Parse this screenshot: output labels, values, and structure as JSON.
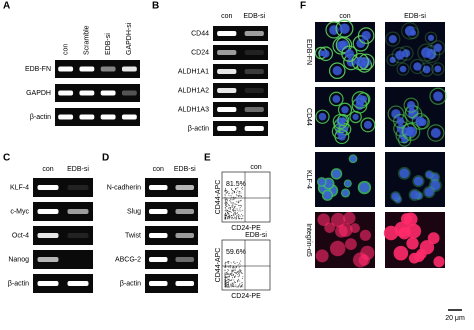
{
  "panel_a": {
    "label": "A",
    "columns": [
      "con",
      "Scramble",
      "EDB-si",
      "GAPDH-si"
    ],
    "rows": [
      "EDB-FN",
      "GAPDH",
      "β-actin"
    ]
  },
  "panel_b": {
    "label": "B",
    "columns": [
      "con",
      "EDB-si"
    ],
    "rows": [
      "CD44",
      "CD24",
      "ALDH1A1",
      "ALDH1A2",
      "ALDH1A3",
      "β-actin"
    ]
  },
  "panel_c": {
    "label": "C",
    "columns": [
      "con",
      "EDB-si"
    ],
    "rows": [
      "KLF-4",
      "c-Myc",
      "Oct-4",
      "Nanog",
      "β-actin"
    ]
  },
  "panel_d": {
    "label": "D",
    "columns": [
      "con",
      "EDB-si"
    ],
    "rows": [
      "N-cadherin",
      "Slug",
      "Twist",
      "ABCG-2",
      "β-actin"
    ]
  },
  "panel_e": {
    "label": "E",
    "plots": [
      {
        "title": "con",
        "percent": "81.5%",
        "y_label": "CD44-APC",
        "x_label": "CD24-PE"
      },
      {
        "title": "EDB-si",
        "percent": "59.6%",
        "y_label": "CD44-APC",
        "x_label": "CD24-PE"
      }
    ]
  },
  "panel_f": {
    "label": "F",
    "columns": [
      "con",
      "EDB-si"
    ],
    "rows": [
      "EDB-FN",
      "CD44",
      "KLF-4",
      "Integrin-α5"
    ],
    "scale_bar": "20 μm"
  }
}
